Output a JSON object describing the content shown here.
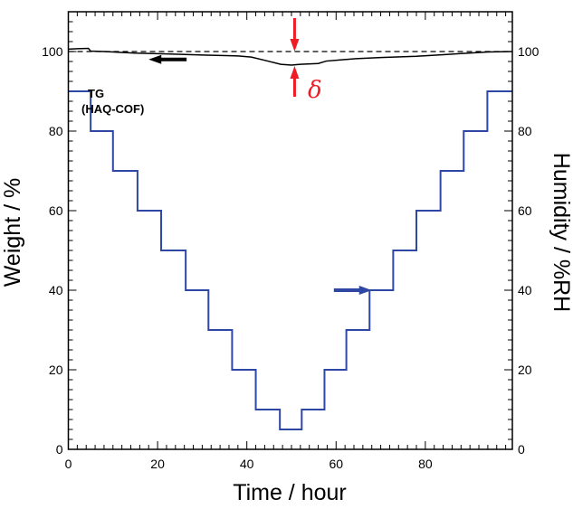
{
  "chart_data": {
    "type": "line",
    "title": "",
    "xlabel": "Time / hour",
    "ylabel": "Weight / %",
    "y2label": "Humidity / %RH",
    "xlim": [
      0,
      99.5
    ],
    "ylim": [
      0,
      110
    ],
    "y2lim": [
      0,
      110
    ],
    "xticks": [
      0,
      20,
      40,
      60,
      80
    ],
    "yticks": [
      0,
      20,
      40,
      60,
      80,
      100
    ],
    "y2ticks": [
      0,
      20,
      40,
      60,
      80,
      100
    ],
    "grid": false,
    "reference_line": {
      "y": 100,
      "style": "dashed"
    },
    "series": [
      {
        "name": "TG (HAQ-COF)",
        "axis": "left",
        "color": "#000000",
        "x": [
          0,
          2,
          4.5,
          5,
          8,
          15,
          22,
          31,
          38,
          41,
          44,
          47.6,
          50,
          52,
          56,
          57.8,
          61,
          64.5,
          70,
          78,
          84,
          88,
          94,
          99.5
        ],
        "y": [
          100.6,
          100.7,
          100.8,
          100.1,
          100.0,
          99.6,
          99.4,
          99.1,
          98.9,
          98.6,
          97.8,
          96.8,
          96.6,
          96.8,
          97.0,
          97.6,
          97.9,
          98.2,
          98.5,
          98.8,
          99.2,
          99.5,
          99.9,
          100.0
        ]
      },
      {
        "axis": "right",
        "color": "#2e47a5",
        "step_times": [
          0,
          5,
          10,
          15.5,
          20.8,
          26.3,
          31.4,
          36.7,
          42,
          47.4,
          52.3,
          57.4,
          62.3,
          67.5,
          72.8,
          78,
          83.4,
          88.6,
          93.9,
          99.5
        ],
        "levels": [
          90,
          80,
          70,
          60,
          50,
          40,
          30,
          20,
          10,
          5,
          10,
          20,
          30,
          40,
          50,
          60,
          70,
          80,
          90
        ]
      }
    ],
    "annotations": {
      "series_label_line1": "TG",
      "series_label_line2": "(HAQ-COF)",
      "delta_symbol": "δ",
      "delta_color": "#ee1c24",
      "tg_arrow": {
        "direction": "left",
        "x": [
          18,
          26.5
        ],
        "y": 98
      },
      "humidity_arrow": {
        "direction": "right",
        "x": [
          59.5,
          68
        ],
        "y": 40
      },
      "delta_arrows_x": 50.7
    }
  }
}
